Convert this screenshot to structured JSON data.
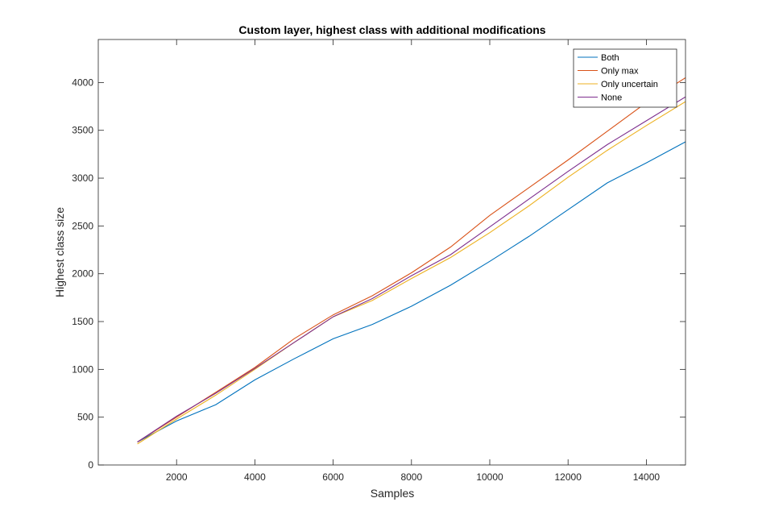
{
  "chart_data": {
    "type": "line",
    "title": "Custom layer, highest class with additional modifications",
    "xlabel": "Samples",
    "ylabel": "Highest class size",
    "xlim": [
      0,
      15000
    ],
    "ylim": [
      0,
      4450
    ],
    "xticks": [
      2000,
      4000,
      6000,
      8000,
      10000,
      12000,
      14000
    ],
    "yticks": [
      0,
      500,
      1000,
      1500,
      2000,
      2500,
      3000,
      3500,
      4000
    ],
    "grid": false,
    "legend_position": "top-right",
    "x": [
      1000,
      2000,
      3000,
      4000,
      5000,
      6000,
      7000,
      8000,
      9000,
      10000,
      11000,
      12000,
      13000,
      14000,
      15000
    ],
    "series": [
      {
        "name": "Both",
        "color": "#0072BD",
        "values": [
          240,
          460,
          630,
          890,
          1110,
          1320,
          1470,
          1660,
          1880,
          2130,
          2390,
          2670,
          2950,
          3160,
          3380
        ]
      },
      {
        "name": "Only max",
        "color": "#D95319",
        "values": [
          240,
          500,
          760,
          1020,
          1320,
          1570,
          1770,
          2010,
          2280,
          2610,
          2900,
          3190,
          3490,
          3790,
          4050
        ]
      },
      {
        "name": "Only uncertain",
        "color": "#EDB120",
        "values": [
          220,
          480,
          730,
          1000,
          1280,
          1550,
          1720,
          1950,
          2170,
          2430,
          2710,
          3010,
          3290,
          3550,
          3800
        ]
      },
      {
        "name": "None",
        "color": "#7E2F8E",
        "values": [
          240,
          510,
          750,
          1010,
          1280,
          1550,
          1740,
          1980,
          2200,
          2490,
          2780,
          3070,
          3350,
          3600,
          3850
        ]
      }
    ]
  }
}
